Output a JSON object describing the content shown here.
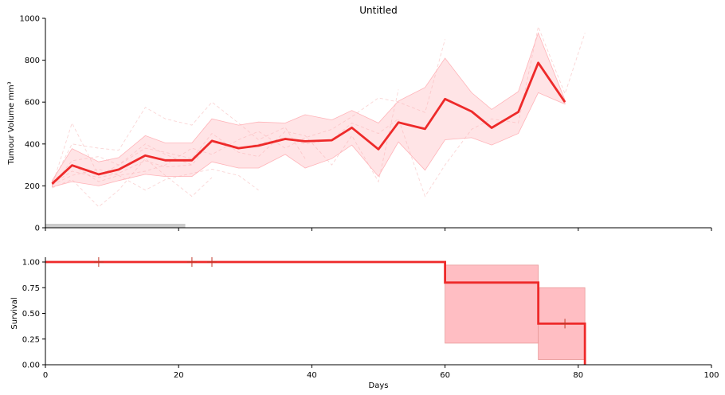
{
  "colors": {
    "mean_line": "#ee2a2a",
    "band": "#ffb3b8",
    "individual": "#f7b9b9",
    "treatment_bar": "#cccccc",
    "survival_ci": "#ffb3b8"
  },
  "chart_data": [
    {
      "type": "line",
      "title": "Untitled",
      "ylabel": "Tumour Volume mm³",
      "xlabel": "",
      "xlim": [
        0,
        100
      ],
      "ylim": [
        0,
        1000
      ],
      "yticks": [
        0,
        200,
        400,
        600,
        800,
        1000
      ],
      "xticks": [
        0,
        20,
        40,
        60,
        80,
        100
      ],
      "show_x_tick_labels": false,
      "grid": false,
      "legend": "none",
      "treatment_period": [
        0,
        21
      ],
      "mean": {
        "x": [
          1,
          4,
          8,
          11,
          15,
          18,
          22,
          25,
          29,
          32,
          36,
          39,
          43,
          46,
          50,
          53,
          57,
          60,
          64,
          67,
          71,
          74,
          78
        ],
        "y": [
          210,
          298,
          255,
          278,
          345,
          322,
          322,
          415,
          380,
          392,
          424,
          413,
          418,
          478,
          375,
          503,
          472,
          615,
          555,
          477,
          553,
          788,
          600
        ]
      },
      "band": {
        "x": [
          1,
          4,
          8,
          11,
          15,
          18,
          22,
          25,
          29,
          32,
          36,
          39,
          43,
          46,
          50,
          53,
          57,
          60,
          64,
          67,
          71,
          74,
          78
        ],
        "upper": [
          225,
          378,
          315,
          335,
          440,
          405,
          405,
          520,
          490,
          505,
          500,
          540,
          515,
          560,
          500,
          605,
          670,
          810,
          645,
          565,
          650,
          930,
          610
        ],
        "lower": [
          195,
          220,
          200,
          225,
          255,
          245,
          245,
          315,
          285,
          285,
          350,
          285,
          330,
          395,
          245,
          410,
          275,
          420,
          430,
          395,
          450,
          645,
          590
        ]
      },
      "individuals": [
        {
          "x": [
            1,
            4,
            8,
            11,
            15,
            18,
            22
          ],
          "y": [
            200,
            500,
            250,
            300,
            400,
            350,
            300
          ]
        },
        {
          "x": [
            1,
            4,
            8,
            11,
            15,
            18,
            22,
            25,
            29,
            32,
            36,
            39
          ],
          "y": [
            215,
            400,
            380,
            370,
            575,
            520,
            490,
            600,
            500,
            420,
            480,
            330
          ]
        },
        {
          "x": [
            1,
            4,
            8,
            11,
            15,
            18,
            22,
            25
          ],
          "y": [
            190,
            230,
            100,
            180,
            330,
            250,
            150,
            240
          ]
        },
        {
          "x": [
            1,
            4,
            8,
            11,
            15,
            18,
            22,
            25,
            29,
            32,
            36,
            39,
            43,
            46,
            50,
            53,
            57,
            60
          ],
          "y": [
            205,
            250,
            280,
            250,
            270,
            300,
            380,
            350,
            420,
            460,
            380,
            430,
            470,
            530,
            620,
            600,
            550,
            900
          ]
        },
        {
          "x": [
            1,
            4,
            8,
            11,
            15,
            18,
            22,
            25,
            29,
            32,
            36,
            39,
            43,
            46,
            50,
            53
          ],
          "y": [
            200,
            320,
            340,
            300,
            380,
            360,
            330,
            450,
            360,
            340,
            460,
            440,
            300,
            440,
            220,
            660
          ]
        },
        {
          "x": [
            1,
            4,
            8,
            11,
            15,
            18,
            22,
            25,
            29,
            32,
            36,
            39,
            43,
            46,
            50,
            53,
            57,
            60,
            64,
            67,
            71,
            74,
            78,
            81
          ],
          "y": [
            210,
            270,
            240,
            260,
            320,
            290,
            300,
            420,
            380,
            400,
            430,
            400,
            420,
            500,
            450,
            520,
            150,
            300,
            470,
            520,
            500,
            960,
            640,
            930
          ]
        },
        {
          "x": [
            1,
            4,
            8,
            11,
            15,
            18,
            22,
            25,
            29,
            32
          ],
          "y": [
            220,
            300,
            220,
            250,
            180,
            230,
            260,
            280,
            250,
            180
          ]
        }
      ]
    },
    {
      "type": "step",
      "title": "",
      "xlabel": "Days",
      "ylabel": "Survival",
      "xlim": [
        0,
        100
      ],
      "ylim": [
        0,
        1
      ],
      "xticks": [
        0,
        20,
        40,
        60,
        80,
        100
      ],
      "yticks": [
        0,
        0.25,
        0.5,
        0.75,
        1.0
      ],
      "ytick_labels": [
        "0.00",
        "0.25",
        "0.50",
        "0.75",
        "1.00"
      ],
      "grid": false,
      "legend": "none",
      "steps": {
        "x": [
          0,
          60,
          74,
          81
        ],
        "y": [
          1.0,
          0.8,
          0.4,
          0.0
        ]
      },
      "end_x": 81,
      "ci": [
        {
          "x0": 60,
          "x1": 74,
          "lower": 0.21,
          "upper": 0.97
        },
        {
          "x0": 74,
          "x1": 81,
          "lower": 0.05,
          "upper": 0.75
        }
      ],
      "censored_x": [
        8,
        22,
        25,
        78
      ]
    }
  ]
}
